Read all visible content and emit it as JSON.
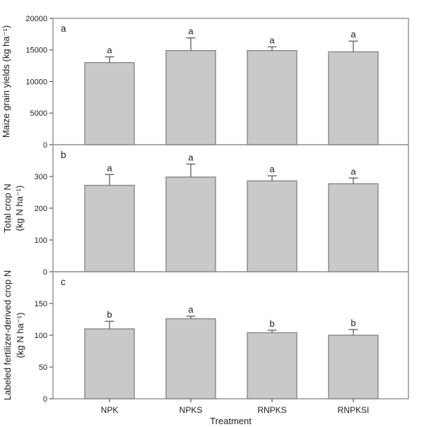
{
  "figure": {
    "background": "#ffffff",
    "xlabel": "Treatment",
    "categories": [
      "NPK",
      "NPKS",
      "RNPKS",
      "RNPKSI"
    ],
    "colors": {
      "bar_fill": "#c9c9c9",
      "bar_stroke": "#878787",
      "error_bar": "#4f4f4f",
      "axis_frame": "#8e8e8e",
      "tick": "#4f4f4f",
      "text": "#1c1c1c"
    }
  },
  "chart_data": [
    {
      "type": "bar",
      "panel_label": "a",
      "ylabel_lines": [
        "Maize grain yields (kg ha⁻¹)"
      ],
      "categories": [
        "NPK",
        "NPKS",
        "RNPKS",
        "RNPKSI"
      ],
      "values": [
        13000,
        14900,
        14900,
        14700
      ],
      "errors": [
        900,
        2000,
        600,
        1700
      ],
      "sig_letters": [
        "a",
        "a",
        "a",
        "a"
      ],
      "ylim": [
        0,
        20000
      ],
      "yticks": [
        0,
        5000,
        10000,
        15000,
        20000
      ],
      "grid": false,
      "legend": null
    },
    {
      "type": "bar",
      "panel_label": "b",
      "ylabel_lines": [
        "Total crop N",
        "(kg N ha⁻¹)"
      ],
      "categories": [
        "NPK",
        "NPKS",
        "RNPKS",
        "RNPKSI"
      ],
      "values": [
        272,
        298,
        286,
        277
      ],
      "errors": [
        34,
        41,
        16,
        18
      ],
      "sig_letters": [
        "a",
        "a",
        "a",
        "a"
      ],
      "ylim": [
        0,
        400
      ],
      "yticks": [
        0,
        100,
        200,
        300
      ],
      "grid": false,
      "legend": null
    },
    {
      "type": "bar",
      "panel_label": "c",
      "ylabel_lines": [
        "Labeled fertilizer-derived crop N",
        "(kg N ha⁻¹)"
      ],
      "categories": [
        "NPK",
        "NPKS",
        "RNPKS",
        "RNPKSI"
      ],
      "values": [
        110,
        126,
        104,
        100
      ],
      "errors": [
        12,
        4,
        4,
        9
      ],
      "sig_letters": [
        "b",
        "a",
        "b",
        "b"
      ],
      "ylim": [
        0,
        200
      ],
      "yticks": [
        0,
        50,
        100,
        150
      ],
      "grid": false,
      "legend": null
    }
  ]
}
